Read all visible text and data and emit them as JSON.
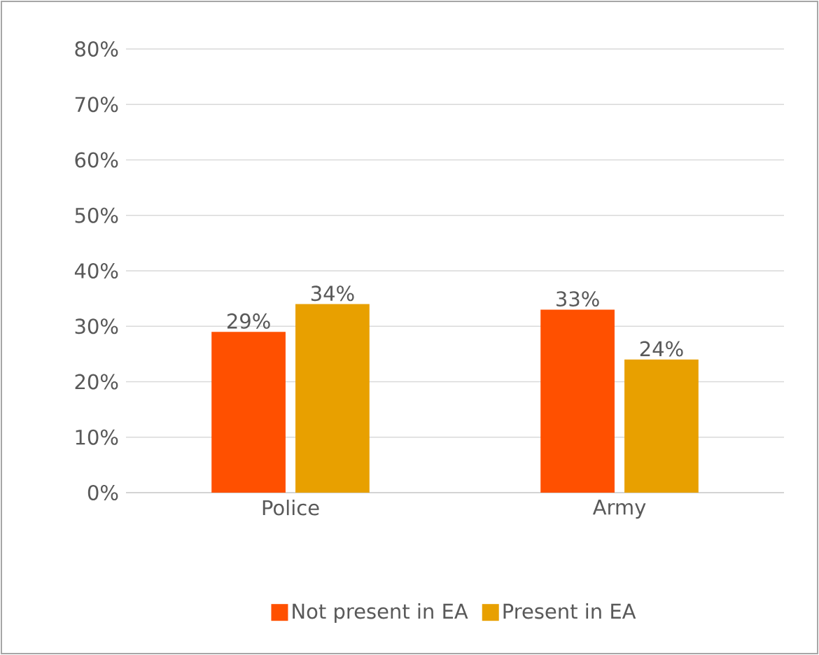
{
  "chart_data": {
    "type": "bar",
    "categories": [
      "Police",
      "Army"
    ],
    "series": [
      {
        "name": "Not present in EA",
        "color": "#ff5000",
        "values": [
          29,
          33
        ],
        "value_labels": [
          "29%",
          "33%"
        ]
      },
      {
        "name": "Present in EA",
        "color": "#e8a000",
        "values": [
          34,
          24
        ],
        "value_labels": [
          "34%",
          "24%"
        ]
      }
    ],
    "ylim": [
      0,
      80
    ],
    "yticks": [
      {
        "value": 0,
        "label": "0%"
      },
      {
        "value": 10,
        "label": "10%"
      },
      {
        "value": 20,
        "label": "20%"
      },
      {
        "value": 30,
        "label": "30%"
      },
      {
        "value": 40,
        "label": "40%"
      },
      {
        "value": 50,
        "label": "50%"
      },
      {
        "value": 60,
        "label": "60%"
      },
      {
        "value": 70,
        "label": "70%"
      },
      {
        "value": 80,
        "label": "80%"
      }
    ],
    "grid": "y",
    "legend": "bottom"
  }
}
